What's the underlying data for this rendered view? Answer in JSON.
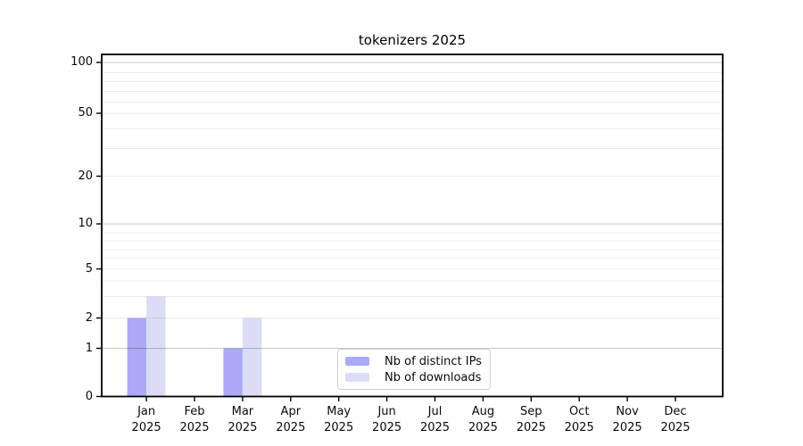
{
  "chart_data": {
    "type": "bar",
    "title": "tokenizers 2025",
    "x_tick_year": "2025",
    "categories": [
      "Jan",
      "Feb",
      "Mar",
      "Apr",
      "May",
      "Jun",
      "Jul",
      "Aug",
      "Sep",
      "Oct",
      "Nov",
      "Dec"
    ],
    "series": [
      {
        "name": "Nb of distinct IPs",
        "color": "#aaaaf7",
        "values": [
          2,
          0,
          1,
          0,
          0,
          0,
          0,
          0,
          0,
          0,
          0,
          0
        ]
      },
      {
        "name": "Nb of downloads",
        "color": "#dcdcf7",
        "values": [
          3,
          0,
          2,
          0,
          0,
          0,
          0,
          0,
          0,
          0,
          0,
          0
        ]
      }
    ],
    "yaxis": {
      "ticks": [
        0,
        1,
        2,
        5,
        10,
        20,
        50,
        100
      ],
      "scale": "log above 1, linear 0-1",
      "range": [
        0,
        110
      ]
    },
    "xlabel": "",
    "ylabel": "",
    "grid": {
      "horizontal": true,
      "vertical": false,
      "minor_log_lines": true,
      "grid_above_bars": true
    },
    "legend": {
      "position": "lower-center",
      "framed": true
    }
  },
  "colors": {
    "bar_distinct_ips": "#aaaaf7",
    "bar_downloads": "#dcdcf7",
    "grid_minor": "rgba(0,0,0,0.08)",
    "grid_major": "rgba(0,0,0,0.22)",
    "spine": "#000000",
    "legend_border": "#d0d0d0",
    "text": "#0a0a0a"
  }
}
